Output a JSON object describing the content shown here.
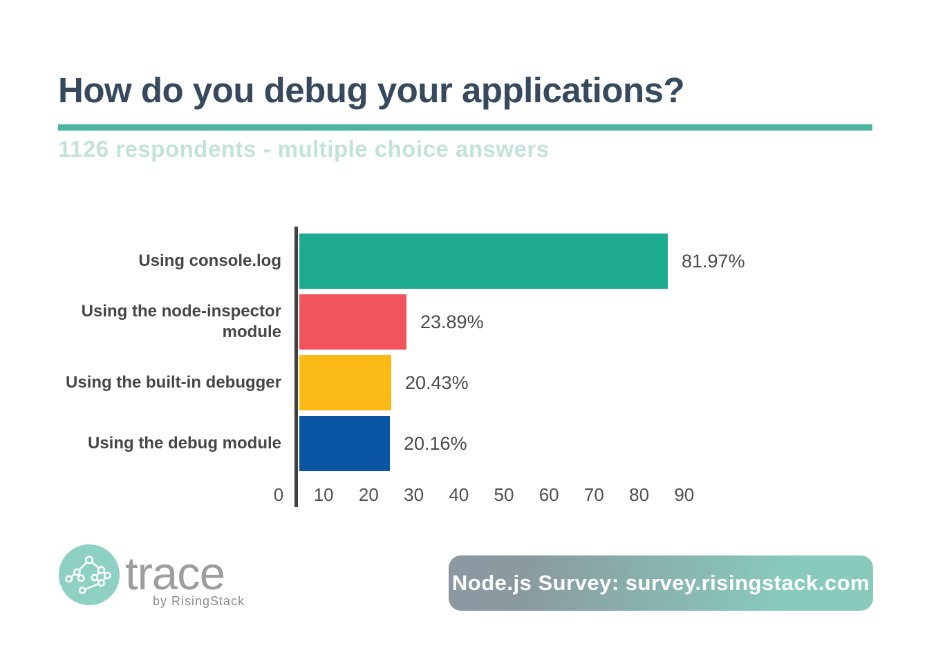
{
  "header": {
    "title": "How do you debug your applications?",
    "subtitle": "1126 respondents - multiple choice answers",
    "title_color": "#36495d",
    "rule_color": "#4bb4a1",
    "subtitle_color": "#c2e2da"
  },
  "chart_data": {
    "type": "bar",
    "orientation": "horizontal",
    "title": "How do you debug your applications?",
    "subtitle": "1126 respondents - multiple choice answers",
    "categories": [
      "Using console.log",
      "Using the node-inspector module",
      "Using the built-in debugger",
      "Using the debug module"
    ],
    "values": [
      81.97,
      23.89,
      20.43,
      20.16
    ],
    "value_labels": [
      "81.97%",
      "23.89%",
      "20.43%",
      "20.16%"
    ],
    "bar_colors": [
      "#1daa90",
      "#f2545e",
      "#fcba16",
      "#0b56a4"
    ],
    "x_ticks": [
      0,
      10,
      20,
      30,
      40,
      50,
      60,
      70,
      80,
      90
    ],
    "xlim": [
      0,
      100
    ],
    "xlabel": "",
    "ylabel": "",
    "grid": false,
    "legend": false,
    "axis_line_color": "#3f3f3f",
    "label_color": "#464646",
    "value_label_color": "#4a4a4a"
  },
  "footer": {
    "logo": {
      "brand": "trace",
      "sub_brand": "by RisingStack",
      "icon": "network-nodes-icon",
      "circle_color": "#8ed0c1",
      "brand_color": "#9d9d9d"
    },
    "banner": {
      "text": "Node.js Survey: survey.risingstack.com",
      "gradient_from": "#8c97a2",
      "gradient_to": "#88cbbc",
      "text_color": "#ffffff"
    }
  }
}
